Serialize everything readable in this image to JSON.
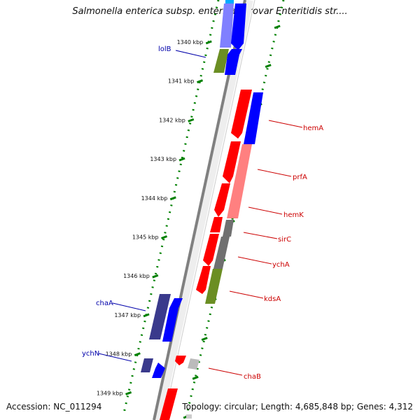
{
  "title": "Salmonella enterica subsp. enterica serovar Enteritidis str....",
  "footer": {
    "accession": "Accession: NC_011294",
    "genome_info": "Topology: circular; Length: 4,685,848 bp; Genes: 4,312"
  },
  "kbp_ticks": [
    "1340 kbp",
    "1341 kbp",
    "1342 kbp",
    "1343 kbp",
    "1344 kbp",
    "1345 kbp",
    "1346 kbp",
    "1347 kbp",
    "1348 kbp",
    "1349 kbp"
  ],
  "gene_labels": [
    {
      "text": "lolB",
      "color": "#0000aa"
    },
    {
      "text": "hemA",
      "color": "#cc0000"
    },
    {
      "text": "prfA",
      "color": "#cc0000"
    },
    {
      "text": "hemK",
      "color": "#cc0000"
    },
    {
      "text": "sirC",
      "color": "#cc0000"
    },
    {
      "text": "ychA",
      "color": "#cc0000"
    },
    {
      "text": "kdsA",
      "color": "#cc0000"
    },
    {
      "text": "chaA",
      "color": "#0000aa"
    },
    {
      "text": "ychN",
      "color": "#0000aa"
    },
    {
      "text": "chaB",
      "color": "#cc0000"
    }
  ],
  "colors": {
    "forward_cds": "#ff0000",
    "reverse_cds": "#0000ff",
    "cog_blue": "#8080ff",
    "cog_green": "#6b8e23",
    "cog_pink": "#ff8080",
    "cog_gray": "#707070",
    "cog_indigo": "#3a3a8c",
    "tick_green": "#008000",
    "backbone": "#808080"
  }
}
